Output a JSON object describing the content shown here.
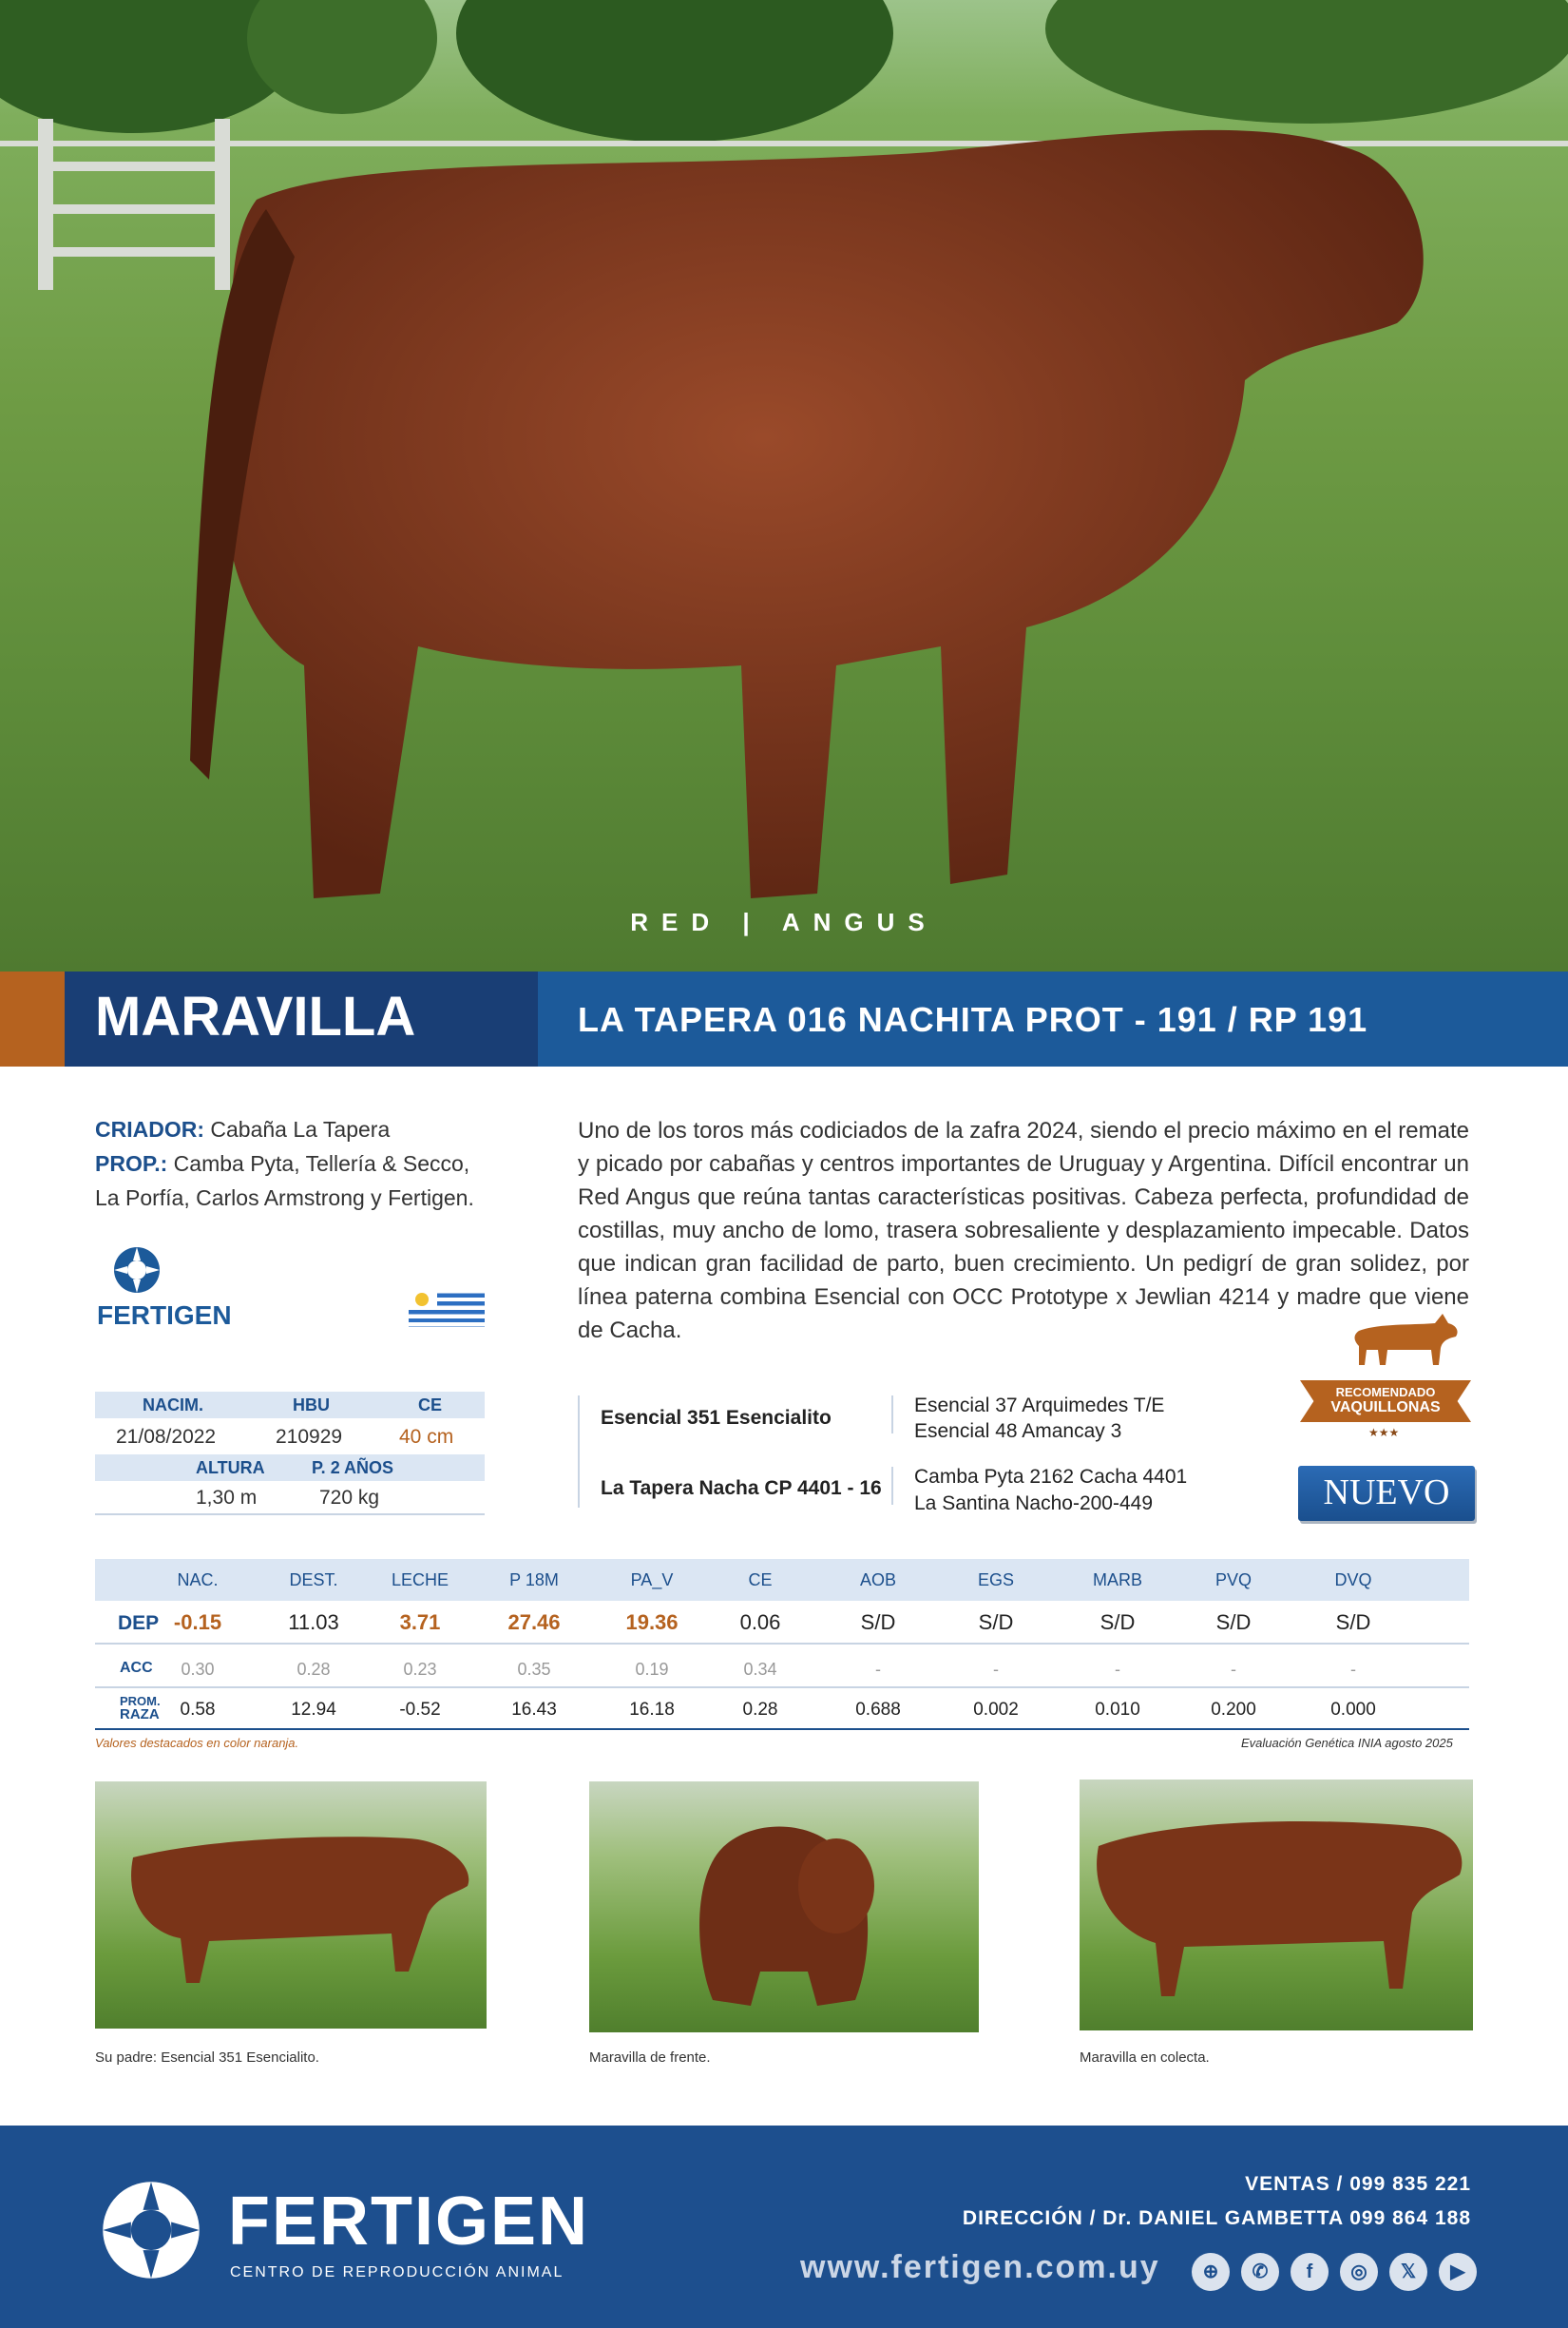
{
  "hero": {
    "breed": "RED  |  ANGUS"
  },
  "title": {
    "name": "MARAVILLA",
    "registration": "LA TAPERA 016 NACHITA PROT - 191 / RP 191"
  },
  "info": {
    "criador_label": "CRIADOR:",
    "criador": "Cabaña La Tapera",
    "prop_label": "PROP.:",
    "prop_line1": "Camba Pyta, Tellería & Secco,",
    "prop_line2": "La Porfía, Carlos Armstrong y Fertigen."
  },
  "brand": {
    "small_logo_text": "FERTIGEN",
    "flag": "uruguay-flag"
  },
  "description": "Uno de los toros más codiciados de la zafra 2024, siendo el precio máximo en el remate y picado por cabañas y centros importantes de Uruguay y Argentina. Difícil encontrar un Red Angus que reúna tantas características positivas. Cabeza perfecta, profundidad de costillas, muy ancho de lomo, trasera sobresaliente y desplazamiento impecable. Datos que indican gran facilidad de parto, buen crecimiento. Un pedigrí de gran solidez, por línea paterna combina Esencial con OCC Prototype x Jewlian 4214 y madre que viene de Cacha.",
  "stats": {
    "h1": [
      "NACIM.",
      "HBU",
      "CE"
    ],
    "v1": [
      "21/08/2022",
      "210929",
      "40 cm"
    ],
    "h2": [
      "ALTURA",
      "P. 2 AÑOS"
    ],
    "v2": [
      "1,30 m",
      "720 kg"
    ]
  },
  "pedigree": {
    "sire": "Esencial 351 Esencialito",
    "sire_sire": "Esencial 37 Arquimedes T/E",
    "sire_dam": "Esencial 48 Amancay 3",
    "dam": "La Tapera Nacha CP 4401 - 16",
    "dam_sire": "Camba Pyta 2162 Cacha 4401",
    "dam_dam": "La Santina Nacho-200-449"
  },
  "badges": {
    "recommended": "RECOMENDADO",
    "recommended2": "VAQUILLONAS",
    "stars": "★★★",
    "new": "NUEVO"
  },
  "dep": {
    "headers": [
      "NAC.",
      "DEST.",
      "LECHE",
      "P 18M",
      "PA_V",
      "CE",
      "AOB",
      "EGS",
      "MARB",
      "PVQ",
      "DVQ"
    ],
    "row_dep_label": "DEP",
    "row_acc_label": "ACC",
    "row_raza_label1": "PROM.",
    "row_raza_label2": "RAZA",
    "dep": [
      "-0.15",
      "11.03",
      "3.71",
      "27.46",
      "19.36",
      "0.06",
      "S/D",
      "S/D",
      "S/D",
      "S/D",
      "S/D"
    ],
    "acc": [
      "0.30",
      "0.28",
      "0.23",
      "0.35",
      "0.19",
      "0.34",
      "-",
      "-",
      "-",
      "-",
      "-"
    ],
    "raza": [
      "0.58",
      "12.94",
      "-0.52",
      "16.43",
      "16.18",
      "0.28",
      "0.688",
      "0.002",
      "0.010",
      "0.200",
      "0.000"
    ],
    "note_left": "Valores destacados en color naranja.",
    "note_right": "Evaluación Genética INIA agosto 2025"
  },
  "photos": {
    "cap1": "Su padre: Esencial 351 Esencialito.",
    "cap2": "Maravilla de frente.",
    "cap3": "Maravilla en colecta."
  },
  "footer": {
    "brand": "FERTIGEN",
    "tagline": "CENTRO DE REPRODUCCIÓN ANIMAL",
    "ventas": "VENTAS / 099 835 221",
    "direccion": "DIRECCIÓN / Dr. DANIEL GAMBETTA 099 864 188",
    "web": "www.fertigen.com.uy",
    "social": [
      "globe-icon",
      "whatsapp-icon",
      "facebook-icon",
      "instagram-icon",
      "x-icon",
      "youtube-icon"
    ]
  },
  "colors": {
    "navy": "#193e75",
    "blue": "#1c5a9a",
    "orange": "#b5621f",
    "footer": "#1d4f8e"
  }
}
